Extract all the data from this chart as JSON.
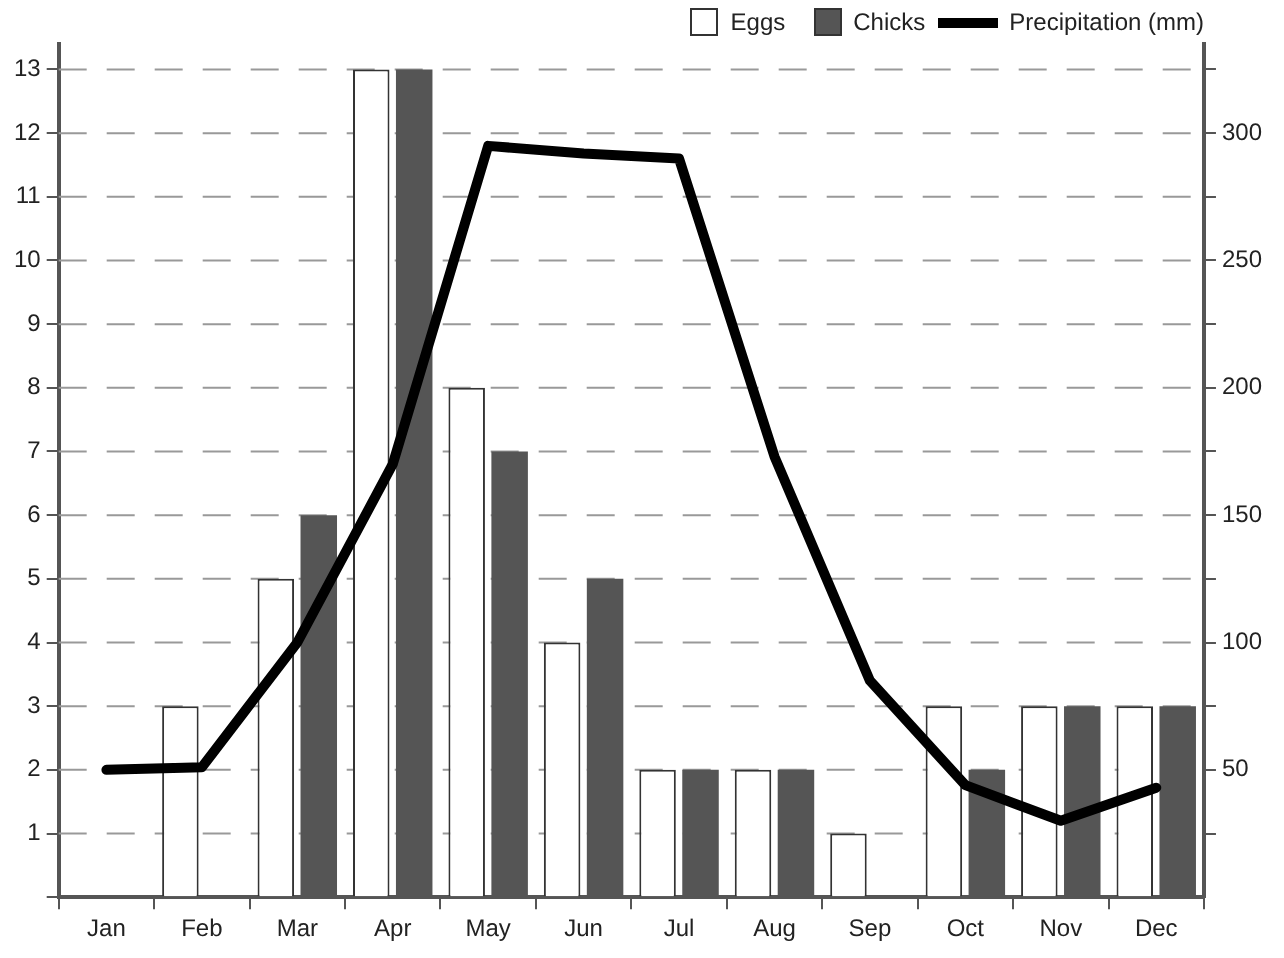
{
  "chart_data": {
    "type": "bar",
    "categories": [
      "Jan",
      "Feb",
      "Mar",
      "Apr",
      "May",
      "Jun",
      "Jul",
      "Aug",
      "Sep",
      "Oct",
      "Nov",
      "Dec"
    ],
    "series": [
      {
        "name": "Eggs",
        "color": "#ffffff",
        "values": [
          0,
          3,
          5,
          13,
          8,
          4,
          2,
          2,
          1,
          3,
          3,
          3
        ]
      },
      {
        "name": "Chicks",
        "color": "#555555",
        "values": [
          0,
          0,
          6,
          13,
          7,
          5,
          2,
          2,
          0,
          2,
          3,
          3
        ]
      },
      {
        "name": "Precipitation (mm)",
        "type": "line",
        "axis": "y2",
        "color": "#000000",
        "values": [
          50,
          51,
          100,
          170,
          295,
          292,
          290,
          173,
          85,
          44,
          30,
          43
        ]
      }
    ],
    "ylim": [
      0,
      13.4
    ],
    "yticks": [
      {
        "value": 0,
        "label": null
      },
      1,
      2,
      3,
      4,
      5,
      6,
      7,
      8,
      9,
      10,
      11,
      12,
      13
    ],
    "y2lim": [
      0,
      335
    ],
    "y2ticks": [
      {
        "value": 25,
        "label": null
      },
      50,
      {
        "value": 75,
        "label": null
      },
      100,
      {
        "value": 125,
        "label": null
      },
      150,
      {
        "value": 175,
        "label": null
      },
      200,
      {
        "value": 225,
        "label": null
      },
      250,
      {
        "value": 275,
        "label": null
      },
      300,
      {
        "value": 325,
        "label": null
      }
    ],
    "grid": "y",
    "legend": "top right",
    "marker": "none",
    "line_style": "solid"
  }
}
